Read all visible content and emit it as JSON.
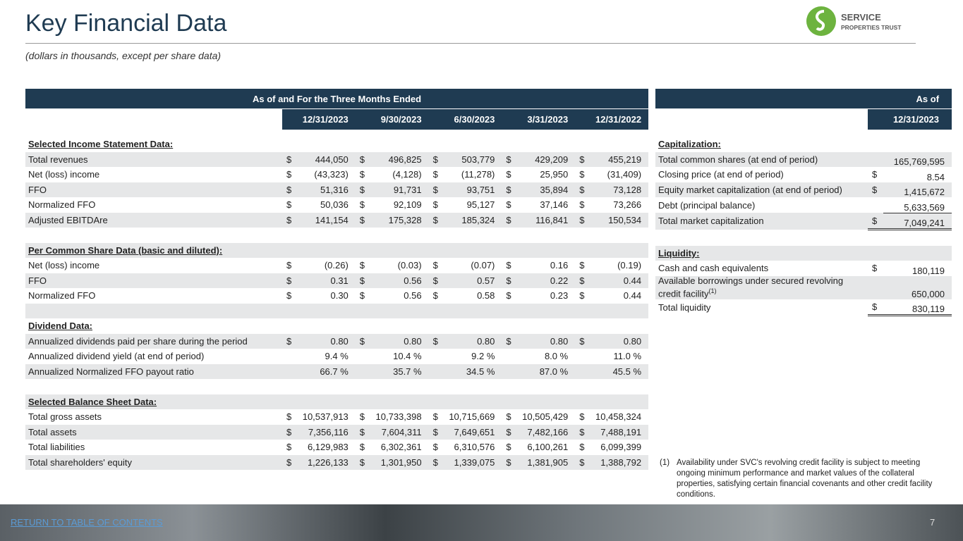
{
  "header": {
    "title": "Key Financial Data",
    "subtitle": "(dollars in thousands, except per share data)",
    "logo": {
      "name": "SERVICE",
      "tagline": "PROPERTIES TRUST"
    }
  },
  "left_table": {
    "group_header": "As of and For the Three Months Ended",
    "columns": [
      "12/31/2023",
      "9/30/2023",
      "6/30/2023",
      "3/31/2023",
      "12/31/2022"
    ],
    "sections": [
      {
        "title": "Selected Income Statement Data:",
        "rows": [
          {
            "label": "Total revenues",
            "symbol": "$",
            "values": [
              "444,050",
              "496,825",
              "503,779",
              "429,209",
              "455,219"
            ]
          },
          {
            "label": "Net (loss) income",
            "symbol": "$",
            "values": [
              "(43,323)",
              "(4,128)",
              "(11,278)",
              "25,950",
              "(31,409)"
            ]
          },
          {
            "label": "FFO",
            "symbol": "$",
            "values": [
              "51,316",
              "91,731",
              "93,751",
              "35,894",
              "73,128"
            ]
          },
          {
            "label": "Normalized FFO",
            "symbol": "$",
            "values": [
              "50,036",
              "92,109",
              "95,127",
              "37,146",
              "73,266"
            ]
          },
          {
            "label": "Adjusted EBITDAre",
            "symbol": "$",
            "values": [
              "141,154",
              "175,328",
              "185,324",
              "116,841",
              "150,534"
            ]
          }
        ]
      },
      {
        "title": "Per Common Share Data (basic and diluted):",
        "rows": [
          {
            "label": "Net (loss) income",
            "symbol": "$",
            "values": [
              "(0.26)",
              "(0.03)",
              "(0.07)",
              "0.16",
              "(0.19)"
            ]
          },
          {
            "label": "FFO",
            "symbol": "$",
            "values": [
              "0.31",
              "0.56",
              "0.57",
              "0.22",
              "0.44"
            ]
          },
          {
            "label": "Normalized FFO",
            "symbol": "$",
            "values": [
              "0.30",
              "0.56",
              "0.58",
              "0.23",
              "0.44"
            ]
          }
        ]
      },
      {
        "title": "Dividend Data:",
        "rows": [
          {
            "label": "Annualized dividends paid per share during the period",
            "symbol": "$",
            "values": [
              "0.80",
              "0.80",
              "0.80",
              "0.80",
              "0.80"
            ]
          },
          {
            "label": "Annualized dividend yield (at end of period)",
            "values": [
              "9.4 %",
              "10.4 %",
              "9.2 %",
              "8.0 %",
              "11.0 %"
            ]
          },
          {
            "label": "Annualized Normalized FFO payout ratio",
            "values": [
              "66.7 %",
              "35.7 %",
              "34.5 %",
              "87.0 %",
              "45.5 %"
            ]
          }
        ]
      },
      {
        "title": "Selected Balance Sheet Data:",
        "rows": [
          {
            "label": "Total gross assets",
            "symbol": "$",
            "values": [
              "10,537,913",
              "10,733,398",
              "10,715,669",
              "10,505,429",
              "10,458,324"
            ]
          },
          {
            "label": "Total assets",
            "symbol": "$",
            "values": [
              "7,356,116",
              "7,604,311",
              "7,649,651",
              "7,482,166",
              "7,488,191"
            ]
          },
          {
            "label": "Total liabilities",
            "symbol": "$",
            "values": [
              "6,129,983",
              "6,302,361",
              "6,310,576",
              "6,100,261",
              "6,099,399"
            ]
          },
          {
            "label": "Total shareholders' equity",
            "symbol": "$",
            "values": [
              "1,226,133",
              "1,301,950",
              "1,339,075",
              "1,381,905",
              "1,388,792"
            ]
          }
        ]
      }
    ]
  },
  "right_table": {
    "group_header": "As of",
    "column": "12/31/2023",
    "sections": [
      {
        "title": "Capitalization:",
        "rows": [
          {
            "label": "Total common shares (at end of period)",
            "value": "165,769,595"
          },
          {
            "label": "Closing price (at end of period)",
            "symbol": "$",
            "value": "8.54"
          },
          {
            "label": "Equity market capitalization (at end of period)",
            "symbol": "$",
            "value": "1,415,672"
          },
          {
            "label": "Debt (principal balance)",
            "value": "5,633,569"
          },
          {
            "label": "Total market capitalization",
            "symbol": "$",
            "value": "7,049,241"
          }
        ]
      },
      {
        "title": "Liquidity:",
        "rows": [
          {
            "label": "Cash and cash equivalents",
            "symbol": "$",
            "value": "180,119"
          },
          {
            "label": "Available borrowings under secured revolving credit facility",
            "note": "(1)",
            "value": "650,000"
          },
          {
            "label": "Total liquidity",
            "symbol": "$",
            "value": "830,119"
          }
        ]
      }
    ]
  },
  "footnote": {
    "marker": "(1)",
    "text": "Availability under SVC's revolving credit facility is subject to meeting ongoing minimum performance and market values of the collateral properties, satisfying certain financial covenants and other credit facility conditions."
  },
  "footer": {
    "link": "RETURN TO TABLE OF CONTENTS",
    "page": "7"
  }
}
